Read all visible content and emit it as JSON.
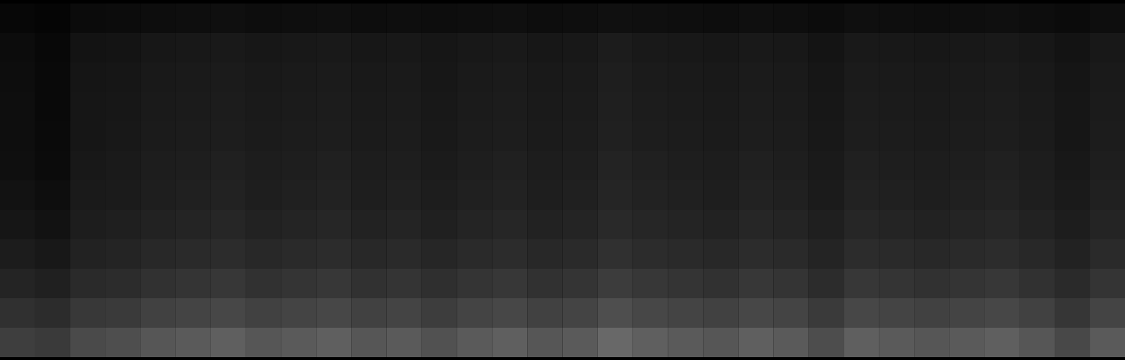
{
  "chart_data": {
    "type": "heatmap",
    "tick_labels": false,
    "zlim": [
      0,
      255
    ],
    "cells": [
      [
        7,
        5,
        11,
        12,
        13,
        14,
        15,
        13,
        14,
        15,
        13,
        14,
        13,
        14,
        15,
        13,
        14,
        16,
        15,
        14,
        13,
        15,
        14,
        12,
        15,
        14,
        13,
        14,
        15,
        13,
        11,
        14
      ],
      [
        12,
        8,
        19,
        20,
        23,
        24,
        25,
        23,
        24,
        25,
        23,
        24,
        22,
        24,
        25,
        23,
        24,
        28,
        25,
        24,
        23,
        25,
        24,
        20,
        25,
        24,
        23,
        24,
        25,
        23,
        19,
        24
      ],
      [
        13,
        9,
        21,
        22,
        25,
        26,
        27,
        25,
        26,
        27,
        25,
        26,
        23,
        26,
        27,
        25,
        26,
        30,
        27,
        26,
        25,
        27,
        26,
        22,
        27,
        26,
        25,
        26,
        27,
        25,
        21,
        26
      ],
      [
        14,
        9,
        22,
        23,
        26,
        27,
        28,
        26,
        27,
        28,
        26,
        27,
        24,
        27,
        28,
        26,
        27,
        31,
        28,
        27,
        26,
        28,
        27,
        23,
        28,
        27,
        26,
        27,
        28,
        26,
        22,
        27
      ],
      [
        14,
        10,
        22,
        24,
        27,
        28,
        29,
        27,
        28,
        29,
        27,
        28,
        25,
        28,
        29,
        27,
        28,
        32,
        29,
        28,
        27,
        29,
        28,
        24,
        29,
        28,
        27,
        28,
        29,
        27,
        22,
        28
      ],
      [
        15,
        11,
        24,
        26,
        29,
        30,
        32,
        29,
        30,
        32,
        29,
        30,
        27,
        30,
        32,
        29,
        30,
        35,
        32,
        30,
        29,
        32,
        30,
        26,
        32,
        30,
        29,
        30,
        32,
        29,
        24,
        30
      ],
      [
        18,
        14,
        26,
        27,
        30,
        32,
        34,
        30,
        32,
        34,
        30,
        32,
        29,
        32,
        34,
        30,
        32,
        37,
        34,
        32,
        30,
        34,
        32,
        27,
        34,
        32,
        30,
        32,
        34,
        30,
        26,
        32
      ],
      [
        22,
        18,
        29,
        31,
        34,
        36,
        38,
        34,
        36,
        38,
        34,
        36,
        32,
        36,
        38,
        34,
        36,
        41,
        38,
        36,
        34,
        38,
        36,
        31,
        38,
        36,
        34,
        36,
        38,
        34,
        29,
        36
      ],
      [
        28,
        24,
        34,
        36,
        40,
        42,
        44,
        40,
        42,
        44,
        40,
        42,
        38,
        42,
        44,
        40,
        42,
        48,
        44,
        42,
        40,
        44,
        42,
        36,
        44,
        42,
        40,
        42,
        44,
        40,
        34,
        42
      ],
      [
        36,
        32,
        42,
        44,
        49,
        52,
        55,
        49,
        52,
        55,
        49,
        52,
        47,
        52,
        55,
        49,
        52,
        60,
        55,
        52,
        49,
        55,
        52,
        44,
        55,
        52,
        49,
        52,
        55,
        49,
        42,
        52
      ],
      [
        48,
        44,
        56,
        58,
        65,
        68,
        71,
        65,
        68,
        71,
        65,
        68,
        61,
        68,
        71,
        65,
        68,
        78,
        71,
        68,
        65,
        71,
        68,
        58,
        71,
        68,
        65,
        68,
        71,
        65,
        54,
        68
      ],
      [
        62,
        58,
        74,
        78,
        86,
        90,
        95,
        86,
        90,
        95,
        86,
        90,
        81,
        90,
        95,
        86,
        90,
        104,
        95,
        90,
        86,
        95,
        90,
        77,
        95,
        90,
        86,
        90,
        95,
        86,
        72,
        90
      ]
    ]
  }
}
